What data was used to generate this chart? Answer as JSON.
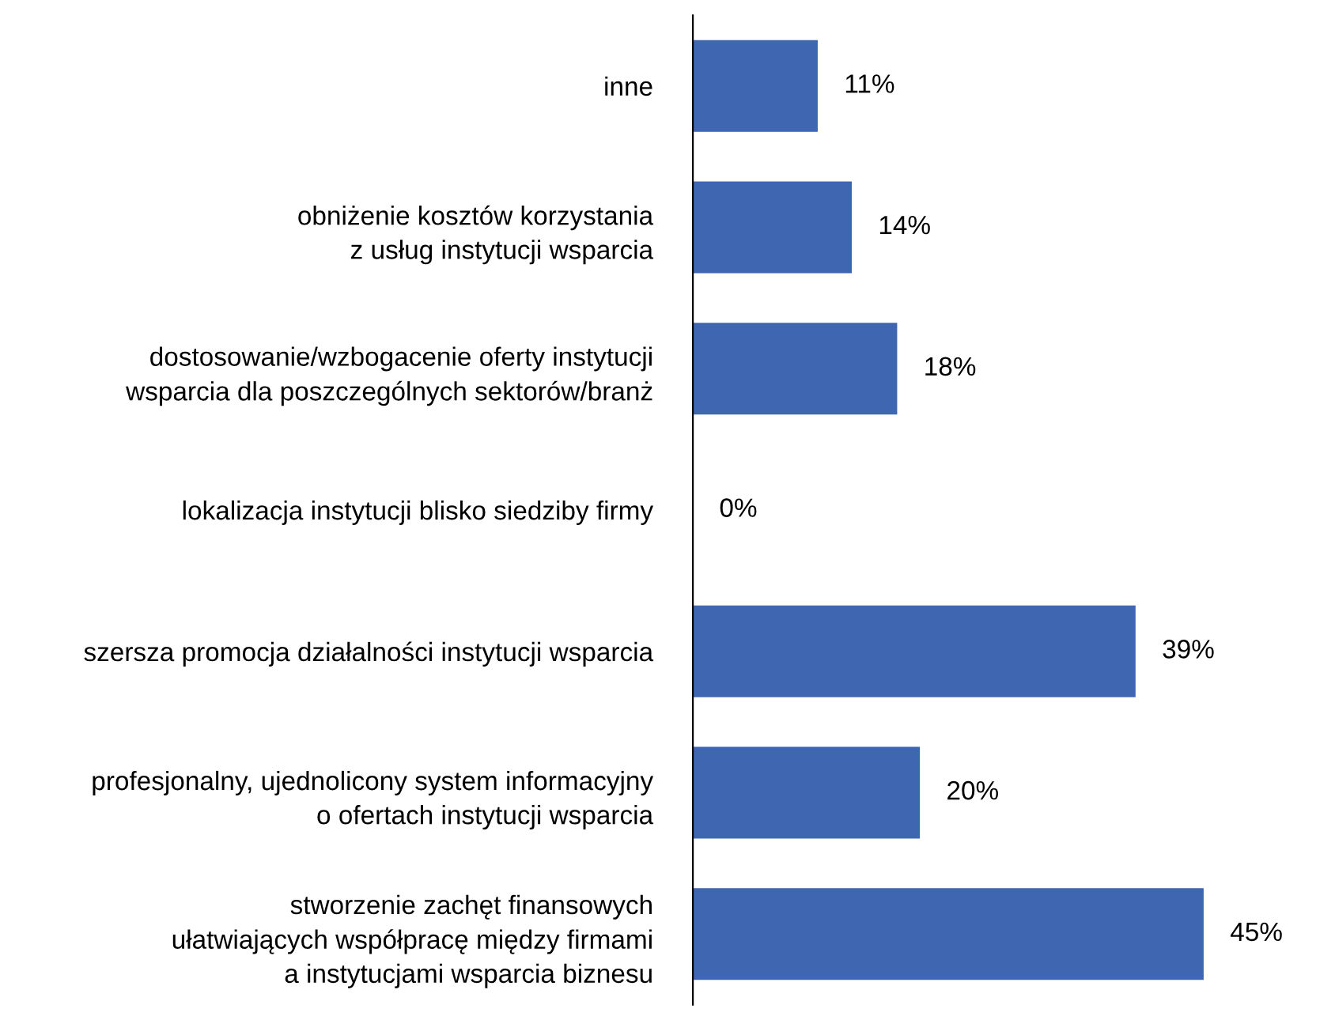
{
  "chart_data": {
    "type": "bar",
    "orientation": "horizontal",
    "categories": [
      "inne",
      "obniżenie kosztów korzystania\nz usług instytucji wsparcia",
      "dostosowanie/wzbogacenie oferty instytucji\nwsparcia dla poszczególnych sektorów/branż",
      "lokalizacja instytucji blisko siedziby firmy",
      "szersza promocja działalności instytucji wsparcia",
      "profesjonalny, ujednolicony system informacyjny\no ofertach instytucji wsparcia",
      "stworzenie zachęt finansowych\nułatwiających współpracę między firmami\na instytucjami wsparcia biznesu"
    ],
    "values": [
      11,
      14,
      18,
      0,
      39,
      20,
      45
    ],
    "value_labels": [
      "11%",
      "14%",
      "18%",
      "0%",
      "39%",
      "20%",
      "45%"
    ],
    "color": "#3f66b0"
  }
}
